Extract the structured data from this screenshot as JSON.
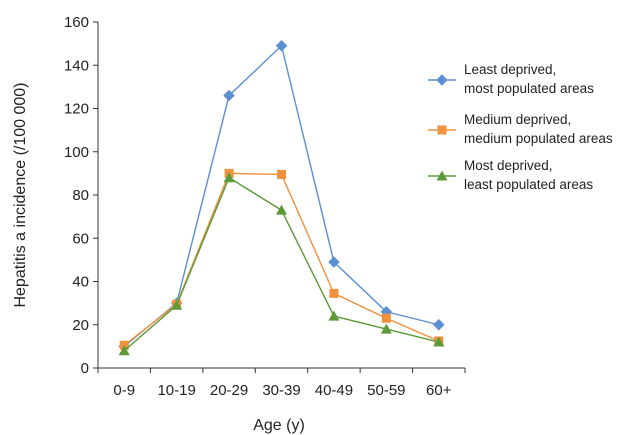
{
  "chart_data": {
    "type": "line",
    "title": "",
    "xlabel": "Age (y)",
    "ylabel": "Hepatitis a incidence (/100 000)",
    "categories": [
      "0-9",
      "10-19",
      "20-29",
      "30-39",
      "40-49",
      "50-59",
      "60+"
    ],
    "ylim": [
      0,
      160
    ],
    "yticks": [
      0,
      20,
      40,
      60,
      80,
      100,
      120,
      140,
      160
    ],
    "grid": false,
    "legend_position": "right",
    "series": [
      {
        "name_lines": [
          "Least deprived,",
          "most populated areas"
        ],
        "color": "#5b8fd1",
        "marker": "diamond",
        "values": [
          10,
          30,
          126,
          149,
          49,
          26,
          20
        ]
      },
      {
        "name_lines": [
          "Medium deprived,",
          "medium populated areas"
        ],
        "color": "#f0913c",
        "marker": "square",
        "values": [
          10.5,
          29.5,
          90,
          89.5,
          34.5,
          23,
          12.5
        ]
      },
      {
        "name_lines": [
          "Most deprived,",
          "least populated areas"
        ],
        "color": "#5c9a3a",
        "marker": "triangle",
        "values": [
          8,
          29,
          88,
          73,
          24,
          18,
          12
        ]
      }
    ]
  }
}
